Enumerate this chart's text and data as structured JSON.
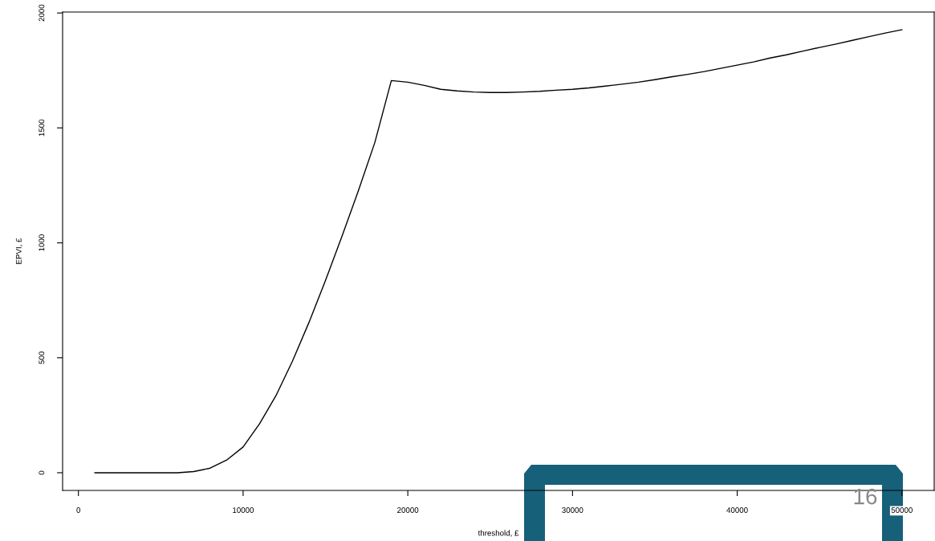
{
  "chart_data": {
    "type": "line",
    "xlabel": "threshold, £",
    "ylabel": "EPVI, £",
    "x": [
      1000,
      2000,
      3000,
      4000,
      5000,
      6000,
      7000,
      8000,
      9000,
      10000,
      11000,
      12000,
      13000,
      14000,
      15000,
      16000,
      17000,
      18000,
      19000,
      20000,
      21000,
      22000,
      23000,
      24000,
      25000,
      26000,
      27000,
      28000,
      29000,
      30000,
      31000,
      32000,
      33000,
      34000,
      35000,
      36000,
      37000,
      38000,
      39000,
      40000,
      41000,
      42000,
      43000,
      44000,
      45000,
      46000,
      47000,
      48000,
      49000,
      50000
    ],
    "series": [
      {
        "color": "#000000",
        "values": [
          0,
          0,
          0,
          0,
          0,
          0,
          5,
          20,
          55,
          112,
          213,
          336,
          486,
          654,
          836,
          1028,
          1227,
          1437,
          1706,
          1699,
          1685,
          1668,
          1661,
          1656,
          1654,
          1654,
          1656,
          1659,
          1664,
          1668,
          1674,
          1682,
          1690,
          1699,
          1710,
          1722,
          1733,
          1745,
          1759,
          1773,
          1787,
          1804,
          1818,
          1834,
          1850,
          1865,
          1881,
          1897,
          1913,
          1927
        ]
      }
    ],
    "xlim": [
      -960,
      51960
    ],
    "ylim": [
      -77,
      2004
    ],
    "xticks": [
      0,
      10000,
      20000,
      30000,
      40000,
      50000
    ],
    "yticks": [
      0,
      500,
      1000,
      1500,
      2000
    ],
    "grid": false,
    "legend": false,
    "marker": "none",
    "line_style": "solid",
    "annotations": [
      "16"
    ]
  }
}
